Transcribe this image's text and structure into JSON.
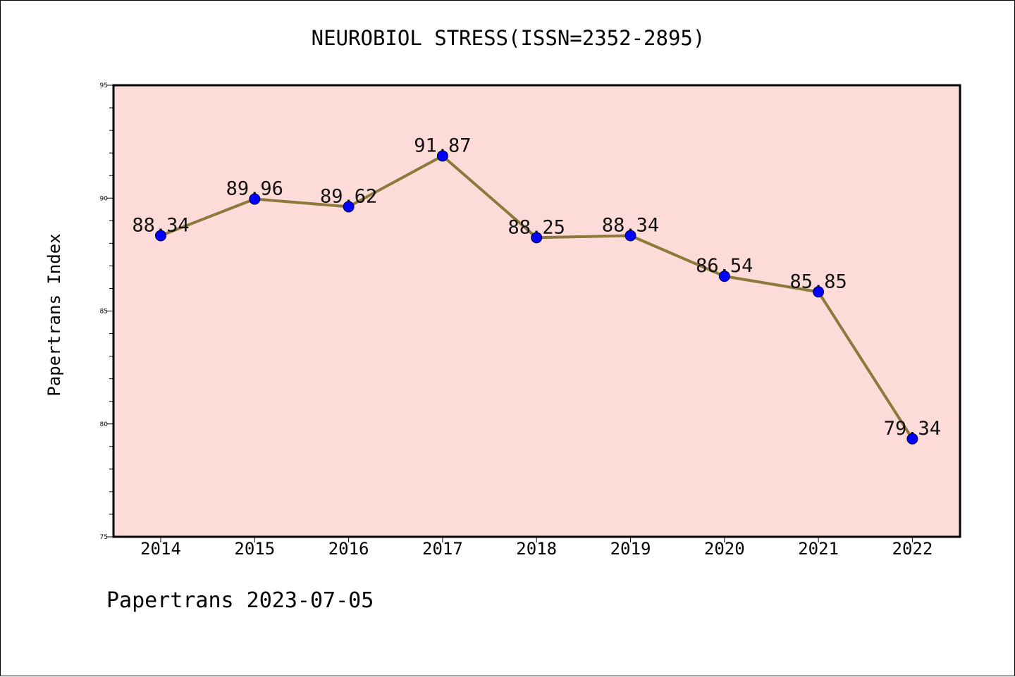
{
  "chart_data": {
    "type": "line",
    "title": "NEUROBIOL STRESS(ISSN=2352-2895)",
    "xlabel": "",
    "ylabel": "Papertrans Index",
    "categories": [
      "2014",
      "2015",
      "2016",
      "2017",
      "2018",
      "2019",
      "2020",
      "2021",
      "2022"
    ],
    "series": [
      {
        "values": [
          88.34,
          89.96,
          89.62,
          91.87,
          88.25,
          88.34,
          86.54,
          85.85,
          79.34
        ],
        "labels": [
          "88.34",
          "89.96",
          "89.62",
          "91.87",
          "88.25",
          "88.34",
          "86.54",
          "85.85",
          "79.34"
        ]
      }
    ],
    "ylim": [
      75,
      95
    ],
    "yticks": [
      "75",
      "80",
      "85",
      "90",
      "95"
    ],
    "grid": false,
    "legend": "none"
  },
  "footer": {
    "stamp": "Papertrans 2023-07-05"
  },
  "colors": {
    "plot_background": "#fddbd8",
    "line": "#8c7a3c",
    "marker": "#0000ff",
    "frame": "#000000"
  }
}
